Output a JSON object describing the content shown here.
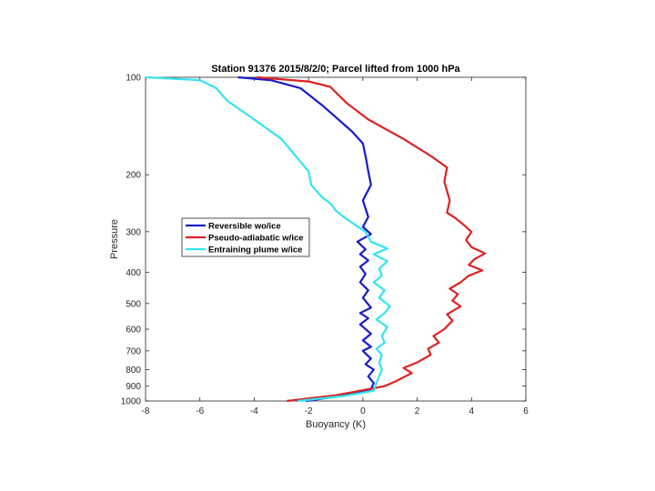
{
  "chart_data": {
    "type": "line",
    "title": "Station 91376  2015/8/2/0; Parcel lifted from 1000 hPa",
    "xlabel": "Buoyancy (K)",
    "ylabel": "Pressure",
    "xlim": [
      -8,
      6
    ],
    "ylim": [
      1000,
      100
    ],
    "y_scale": "log",
    "y_reversed": true,
    "grid": false,
    "legend_position": "middle-left",
    "x_ticks": [
      -8,
      -6,
      -4,
      -2,
      0,
      2,
      4,
      6
    ],
    "y_ticks": [
      100,
      200,
      300,
      400,
      500,
      600,
      700,
      800,
      900,
      1000
    ],
    "series": [
      {
        "name": "Reversible wo/ice",
        "color": "#1a1acc",
        "points": [
          [
            -2.1,
            1000
          ],
          [
            -1.0,
            970
          ],
          [
            0.3,
            920
          ],
          [
            0.4,
            880
          ],
          [
            0.2,
            840
          ],
          [
            0.4,
            800
          ],
          [
            0.1,
            770
          ],
          [
            0.3,
            740
          ],
          [
            0.0,
            700
          ],
          [
            0.3,
            680
          ],
          [
            0.0,
            650
          ],
          [
            0.3,
            620
          ],
          [
            -0.1,
            580
          ],
          [
            0.2,
            555
          ],
          [
            -0.1,
            535
          ],
          [
            0.3,
            515
          ],
          [
            0.0,
            480
          ],
          [
            0.2,
            455
          ],
          [
            -0.1,
            430
          ],
          [
            0.1,
            405
          ],
          [
            -0.1,
            385
          ],
          [
            0.2,
            368
          ],
          [
            -0.1,
            352
          ],
          [
            0.1,
            340
          ],
          [
            -0.2,
            322
          ],
          [
            0.3,
            305
          ],
          [
            0.0,
            290
          ],
          [
            0.2,
            270
          ],
          [
            0.0,
            240
          ],
          [
            0.3,
            215
          ],
          [
            0.2,
            195
          ],
          [
            0.1,
            175
          ],
          [
            0.0,
            160
          ],
          [
            -0.4,
            147
          ],
          [
            -0.9,
            135
          ],
          [
            -1.5,
            122
          ],
          [
            -2.3,
            108
          ],
          [
            -3.4,
            102
          ],
          [
            -4.6,
            100
          ]
        ]
      },
      {
        "name": "Pseudo-adiabatic w/ice",
        "color": "#dd2222",
        "points": [
          [
            -2.8,
            1000
          ],
          [
            -1.0,
            960
          ],
          [
            0.8,
            900
          ],
          [
            1.2,
            870
          ],
          [
            1.8,
            820
          ],
          [
            1.5,
            790
          ],
          [
            2.0,
            760
          ],
          [
            2.5,
            720
          ],
          [
            2.4,
            690
          ],
          [
            2.8,
            660
          ],
          [
            2.6,
            630
          ],
          [
            3.0,
            600
          ],
          [
            3.3,
            565
          ],
          [
            3.1,
            540
          ],
          [
            3.6,
            510
          ],
          [
            3.3,
            490
          ],
          [
            3.5,
            468
          ],
          [
            3.2,
            450
          ],
          [
            3.6,
            430
          ],
          [
            3.9,
            410
          ],
          [
            4.4,
            395
          ],
          [
            3.9,
            380
          ],
          [
            4.1,
            365
          ],
          [
            4.5,
            350
          ],
          [
            4.0,
            335
          ],
          [
            3.8,
            318
          ],
          [
            4.0,
            300
          ],
          [
            3.7,
            285
          ],
          [
            3.4,
            272
          ],
          [
            3.1,
            262
          ],
          [
            3.2,
            240
          ],
          [
            3.0,
            210
          ],
          [
            3.1,
            190
          ],
          [
            2.5,
            175
          ],
          [
            1.5,
            155
          ],
          [
            0.2,
            135
          ],
          [
            -0.6,
            120
          ],
          [
            -1.2,
            107
          ],
          [
            -2.0,
            103
          ],
          [
            -3.9,
            100
          ]
        ]
      },
      {
        "name": "Entraining plume w/ice",
        "color": "#33e5f0",
        "points": [
          [
            -2.4,
            1000
          ],
          [
            -0.7,
            965
          ],
          [
            0.4,
            930
          ],
          [
            0.5,
            880
          ],
          [
            0.6,
            840
          ],
          [
            0.7,
            800
          ],
          [
            0.6,
            760
          ],
          [
            0.7,
            720
          ],
          [
            0.5,
            690
          ],
          [
            0.8,
            660
          ],
          [
            0.7,
            630
          ],
          [
            0.9,
            590
          ],
          [
            0.5,
            560
          ],
          [
            0.8,
            535
          ],
          [
            1.0,
            510
          ],
          [
            0.6,
            480
          ],
          [
            0.8,
            455
          ],
          [
            0.4,
            430
          ],
          [
            0.7,
            410
          ],
          [
            0.6,
            390
          ],
          [
            0.9,
            370
          ],
          [
            0.4,
            352
          ],
          [
            0.9,
            338
          ],
          [
            0.3,
            322
          ],
          [
            0.1,
            300
          ],
          [
            -0.3,
            285
          ],
          [
            -0.7,
            270
          ],
          [
            -1.0,
            258
          ],
          [
            -1.2,
            245
          ],
          [
            -1.5,
            235
          ],
          [
            -1.9,
            215
          ],
          [
            -2.0,
            195
          ],
          [
            -2.6,
            170
          ],
          [
            -3.0,
            155
          ],
          [
            -4.0,
            135
          ],
          [
            -5.0,
            118
          ],
          [
            -5.4,
            108
          ],
          [
            -6.0,
            102
          ],
          [
            -8.0,
            100
          ]
        ]
      }
    ]
  }
}
